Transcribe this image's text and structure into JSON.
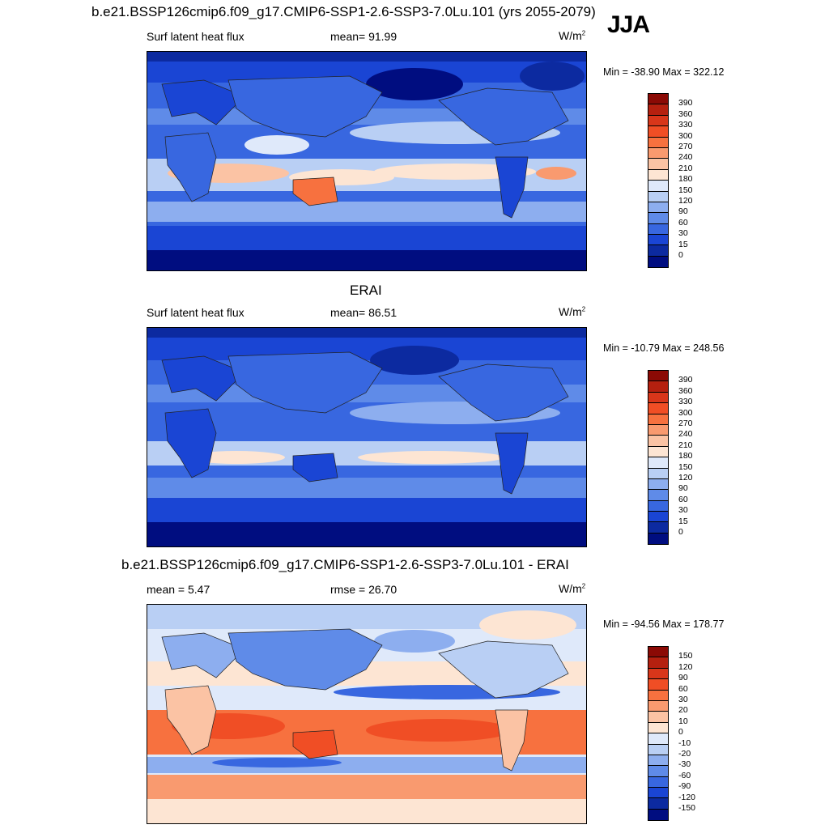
{
  "header": {
    "title": "b.e21.BSSP126cmip6.f09_g17.CMIP6-SSP1-2.6-SSP3-7.0Lu.101 (yrs 2055-2079)",
    "season": "JJA"
  },
  "panels": [
    {
      "id": "model",
      "title": "",
      "left_label": "Surf latent heat flux",
      "center_label": "mean=  91.99",
      "units_base": "W/m",
      "units_exp": "2",
      "minmax": "Min = -38.90 Max = 322.12",
      "colorbar": {
        "labels": [
          "390",
          "360",
          "330",
          "300",
          "270",
          "240",
          "210",
          "180",
          "150",
          "120",
          "90",
          "60",
          "30",
          "15",
          "0"
        ],
        "colors": [
          "#8b0a05",
          "#b5200f",
          "#d8361a",
          "#f04e25",
          "#f7713f",
          "#f99a6f",
          "#fbc3a4",
          "#fde5d3",
          "#dfe9fa",
          "#b9cff4",
          "#8daeef",
          "#5f8be8",
          "#3867e0",
          "#1a45d4",
          "#0c2aa0",
          "#000d80"
        ]
      }
    },
    {
      "id": "obs",
      "title": "ERAI",
      "left_label": "Surf latent heat flux",
      "center_label": "mean=  86.51",
      "units_base": "W/m",
      "units_exp": "2",
      "minmax": "Min = -10.79 Max = 248.56",
      "colorbar": {
        "labels": [
          "390",
          "360",
          "330",
          "300",
          "270",
          "240",
          "210",
          "180",
          "150",
          "120",
          "90",
          "60",
          "30",
          "15",
          "0"
        ],
        "colors": [
          "#8b0a05",
          "#b5200f",
          "#d8361a",
          "#f04e25",
          "#f7713f",
          "#f99a6f",
          "#fbc3a4",
          "#fde5d3",
          "#dfe9fa",
          "#b9cff4",
          "#8daeef",
          "#5f8be8",
          "#3867e0",
          "#1a45d4",
          "#0c2aa0",
          "#000d80"
        ]
      }
    },
    {
      "id": "diff",
      "title": "b.e21.BSSP126cmip6.f09_g17.CMIP6-SSP1-2.6-SSP3-7.0Lu.101 - ERAI",
      "left_label": "mean =   5.47",
      "center_label": "rmse =  26.70",
      "units_base": "W/m",
      "units_exp": "2",
      "minmax": "Min = -94.56 Max = 178.77",
      "colorbar": {
        "labels": [
          "150",
          "120",
          "90",
          "60",
          "30",
          "20",
          "10",
          "0",
          "-10",
          "-20",
          "-30",
          "-60",
          "-90",
          "-120",
          "-150"
        ],
        "colors": [
          "#8b0a05",
          "#b5200f",
          "#d8361a",
          "#f04e25",
          "#f7713f",
          "#f99a6f",
          "#fbc3a4",
          "#fde5d3",
          "#dfe9fa",
          "#b9cff4",
          "#8daeef",
          "#5f8be8",
          "#3867e0",
          "#1a45d4",
          "#0c2aa0",
          "#000d80"
        ]
      }
    }
  ]
}
